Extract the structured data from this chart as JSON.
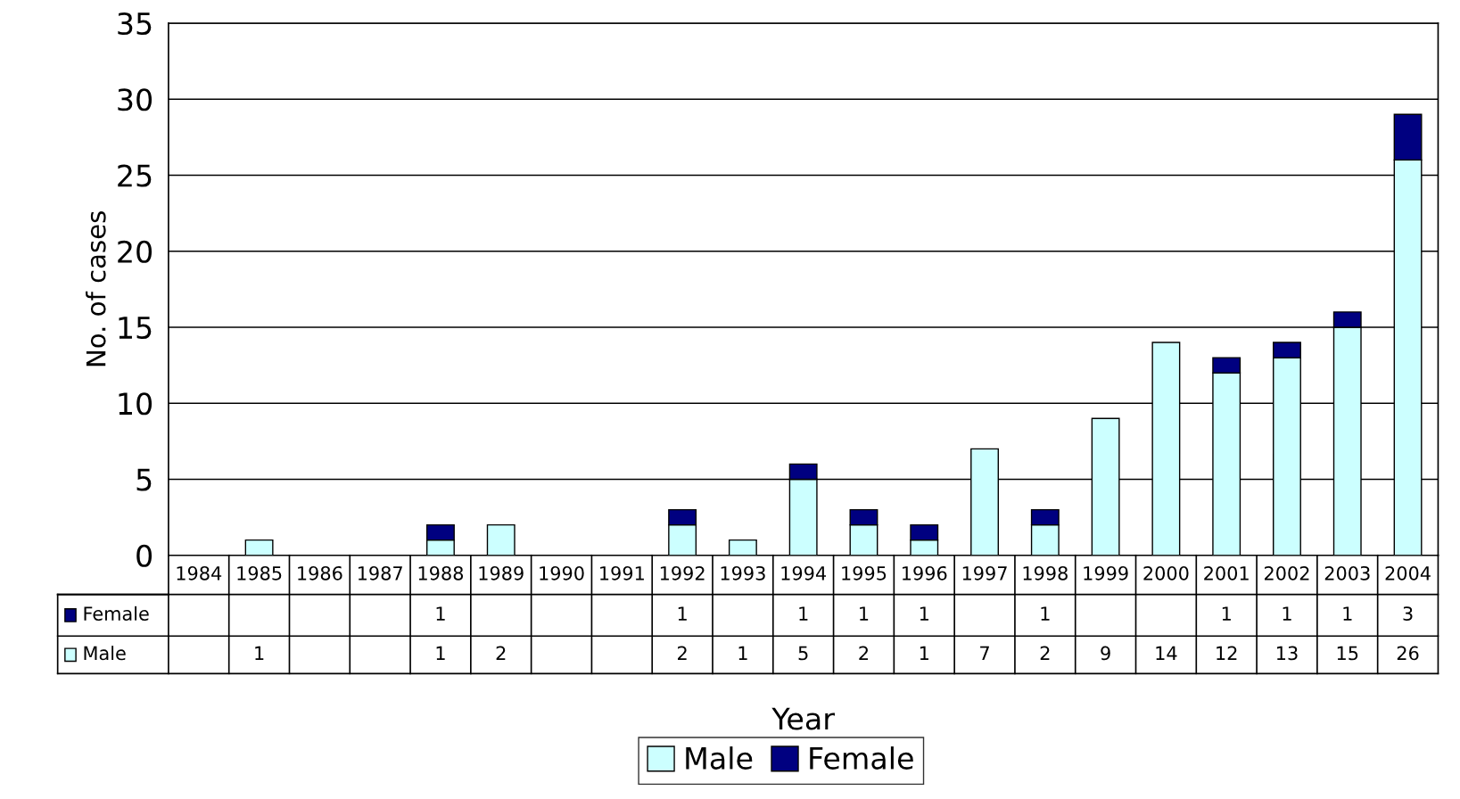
{
  "chart_data": {
    "type": "bar",
    "stacked": true,
    "xlabel": "Year",
    "ylabel": "No. of cases",
    "categories": [
      "1984",
      "1985",
      "1986",
      "1987",
      "1988",
      "1989",
      "1990",
      "1991",
      "1992",
      "1993",
      "1994",
      "1995",
      "1996",
      "1997",
      "1998",
      "1999",
      "2000",
      "2001",
      "2002",
      "2003",
      "2004"
    ],
    "series": [
      {
        "name": "Male",
        "color": "#ccffff",
        "values": [
          null,
          1,
          null,
          null,
          1,
          2,
          null,
          null,
          2,
          1,
          5,
          2,
          1,
          7,
          2,
          9,
          14,
          12,
          13,
          15,
          26
        ]
      },
      {
        "name": "Female",
        "color": "#000080",
        "values": [
          null,
          null,
          null,
          null,
          1,
          null,
          null,
          null,
          1,
          null,
          1,
          1,
          1,
          null,
          1,
          null,
          null,
          1,
          1,
          1,
          3
        ]
      }
    ],
    "ylim": [
      0,
      35
    ],
    "yticks": [
      0,
      5,
      10,
      15,
      20,
      25,
      30,
      35
    ],
    "grid": "y",
    "legend": "bottom",
    "data_labels": true
  }
}
